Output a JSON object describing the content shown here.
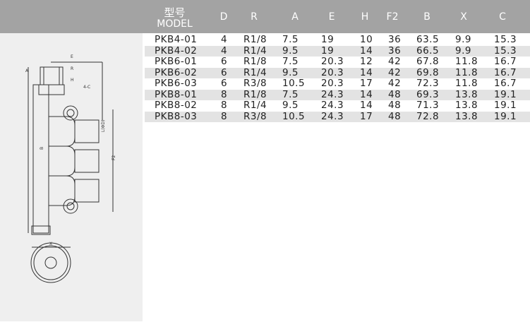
{
  "table": {
    "header": {
      "model_cn": "型号",
      "model_en": "MODEL",
      "columns": [
        "D",
        "R",
        "A",
        "E",
        "H",
        "F2",
        "B",
        "X",
        "C"
      ]
    },
    "rows": [
      [
        "PKB4-01",
        "4",
        "R1/8",
        "7.5",
        "19",
        "10",
        "36",
        "63.5",
        "9.9",
        "15.3"
      ],
      [
        "PKB4-02",
        "4",
        "R1/4",
        "9.5",
        "19",
        "14",
        "36",
        "66.5",
        "9.9",
        "15.3"
      ],
      [
        "PKB6-01",
        "6",
        "R1/8",
        "7.5",
        "20.3",
        "12",
        "42",
        "67.8",
        "11.8",
        "16.7"
      ],
      [
        "PKB6-02",
        "6",
        "R1/4",
        "9.5",
        "20.3",
        "14",
        "42",
        "69.8",
        "11.8",
        "16.7"
      ],
      [
        "PKB6-03",
        "6",
        "R3/8",
        "10.5",
        "20.3",
        "17",
        "42",
        "72.3",
        "11.8",
        "16.7"
      ],
      [
        "PKB8-01",
        "8",
        "R1/8",
        "7.5",
        "24.3",
        "14",
        "48",
        "69.3",
        "13.8",
        "19.1"
      ],
      [
        "PKB8-02",
        "8",
        "R1/4",
        "9.5",
        "24.3",
        "14",
        "48",
        "71.3",
        "13.8",
        "19.1"
      ],
      [
        "PKB8-03",
        "8",
        "R3/8",
        "10.5",
        "24.3",
        "17",
        "48",
        "72.8",
        "13.8",
        "19.1"
      ]
    ]
  },
  "drawing": {
    "labels": [
      "E",
      "A",
      "R",
      "H",
      "4-C",
      "L(ΦD)",
      "B",
      "F2",
      "X"
    ]
  }
}
